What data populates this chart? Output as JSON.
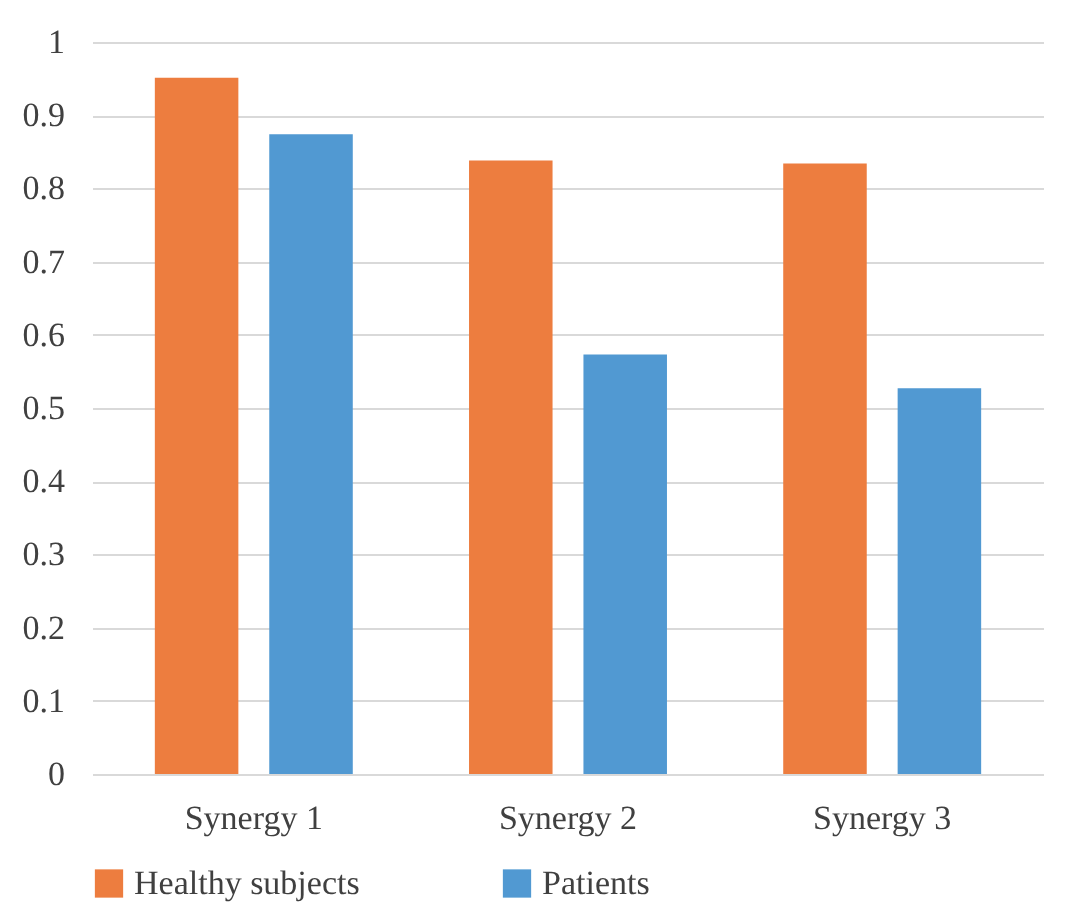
{
  "chart_data": {
    "type": "bar",
    "categories": [
      "Synergy 1",
      "Synergy 2",
      "Synergy 3"
    ],
    "series": [
      {
        "name": "Healthy subjects",
        "color": "#ed7d3f",
        "values": [
          0.951,
          0.838,
          0.834
        ]
      },
      {
        "name": "Patients",
        "color": "#5199d2",
        "values": [
          0.874,
          0.573,
          0.527
        ]
      }
    ],
    "ylim": [
      0,
      1
    ],
    "yticks": [
      0,
      {
        "value": 0.1,
        "label": "0.1"
      },
      {
        "value": 0.2,
        "label": "0.2"
      },
      {
        "value": 0.3,
        "label": "0.3"
      },
      {
        "value": 0.4,
        "label": "0.4"
      },
      {
        "value": 0.5,
        "label": "0.5"
      },
      {
        "value": 0.6,
        "label": "0.6"
      },
      {
        "value": 0.7,
        "label": "0.7"
      },
      {
        "value": 0.8,
        "label": "0.8"
      },
      {
        "value": 0.9,
        "label": "0.9"
      },
      1
    ],
    "grid": "y",
    "legend": "bottom"
  }
}
